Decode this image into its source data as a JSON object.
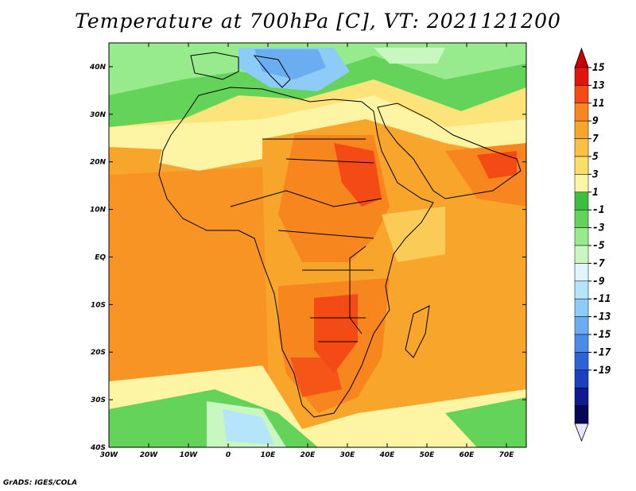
{
  "title": "Temperature at 700hPa [C], VT: 2021121200",
  "credit": "GrADS: IGES/COLA",
  "map": {
    "lon_ticks": [
      "30W",
      "20W",
      "10W",
      "0",
      "10E",
      "20E",
      "30E",
      "40E",
      "50E",
      "60E",
      "70E"
    ],
    "lat_ticks": [
      "40N",
      "30N",
      "20N",
      "10N",
      "EQ",
      "10S",
      "20S",
      "30S",
      "40S"
    ],
    "extent": {
      "lon": [
        -30,
        75
      ],
      "lat": [
        -40,
        45
      ]
    },
    "projection": "latlon",
    "land_region": "Africa, Arabian Peninsula, southern Europe"
  },
  "colorbar": {
    "labels": [
      "15",
      "13",
      "11",
      "9",
      "7",
      "5",
      "3",
      "1",
      "-1",
      "-3",
      "-5",
      "-7",
      "-9",
      "-11",
      "-13",
      "-15",
      "-17",
      "-19"
    ],
    "colors": [
      "#e0150f",
      "#f44a16",
      "#f7861f",
      "#f8a52c",
      "#fac042",
      "#fbdd6a",
      "#fdf4a4",
      "#3cbf3d",
      "#63d35a",
      "#97eb8c",
      "#c9f7c1",
      "#dff6fb",
      "#b4e5fa",
      "#8dcbf8",
      "#6aaef1",
      "#4a8ce8",
      "#2c64d8",
      "#1e3fbf",
      "#0e1a8e",
      "#07075a"
    ],
    "triangle_top_color": "#cc0000",
    "triangle_bottom_color": "#e6e6ff"
  }
}
